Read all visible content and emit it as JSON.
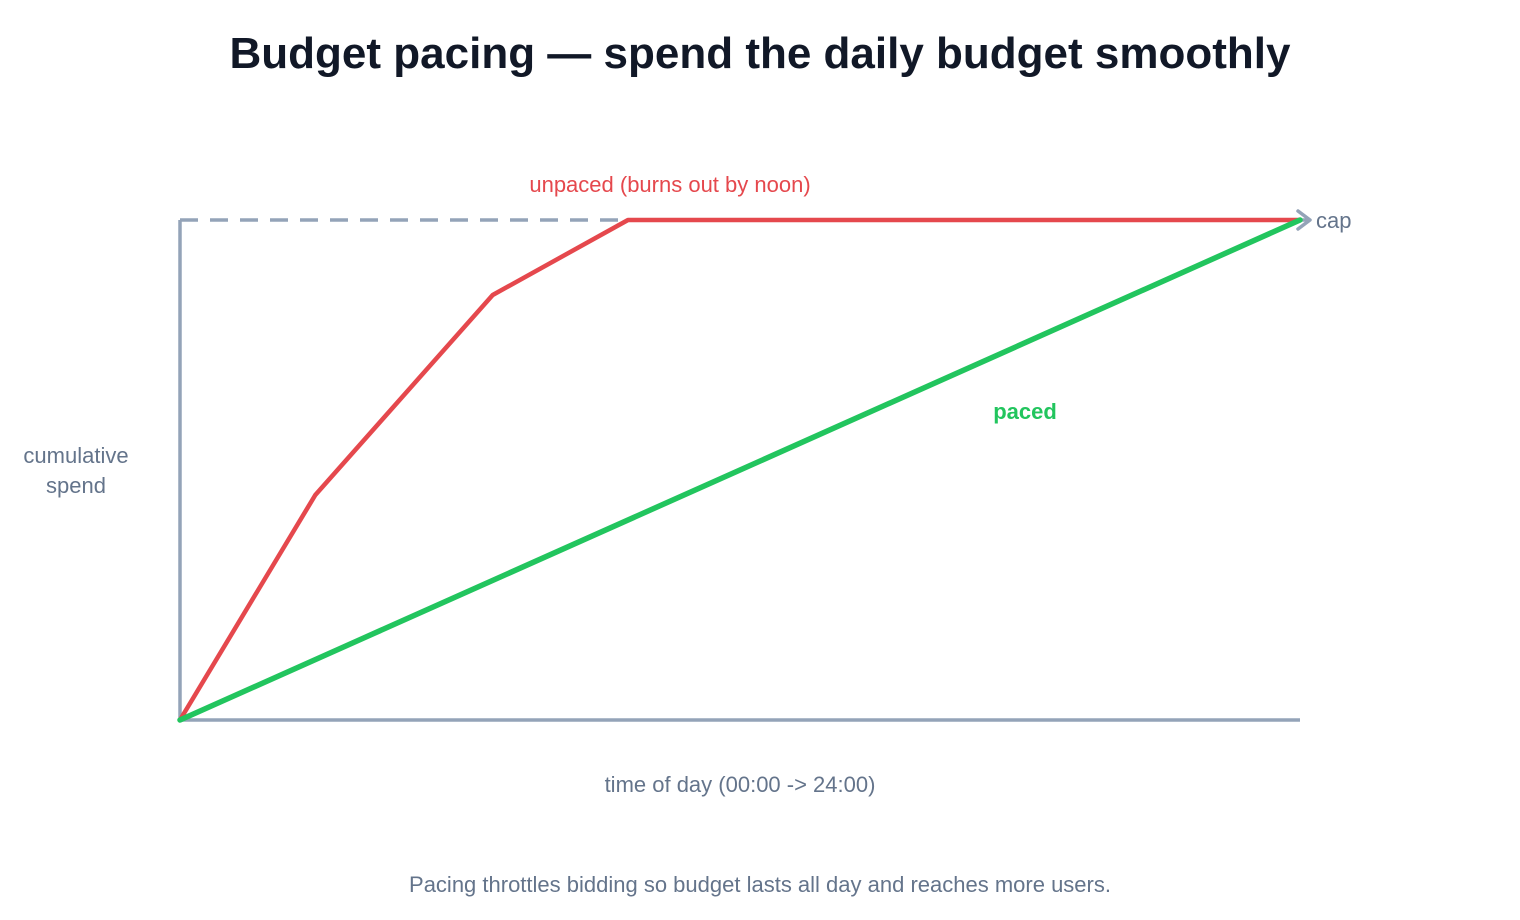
{
  "chart_data": {
    "type": "line",
    "title": "Budget pacing — spend the daily budget smoothly",
    "xlabel": "time of day  (00:00 -> 24:00)",
    "ylabel_lines": [
      "cumulative",
      "spend"
    ],
    "caption": "Pacing throttles bidding so budget lasts all day and reaches more users.",
    "cap_label": "cap",
    "xlim": [
      0,
      24
    ],
    "ylim": [
      0,
      1
    ],
    "cap_value": 1,
    "grid": false,
    "series": [
      {
        "name": "unpaced (burns out by noon)",
        "color": "#e5484d",
        "x": [
          0,
          2.9,
          6.7,
          9.6,
          24
        ],
        "y": [
          0,
          0.45,
          0.85,
          1,
          1
        ]
      },
      {
        "name": "paced",
        "color": "#22c55e",
        "x": [
          0,
          24
        ],
        "y": [
          0,
          1
        ]
      }
    ],
    "colors": {
      "title": "#111827",
      "axis": "#94a3b8",
      "text": "#64748b",
      "cap_line": "#94a3b8"
    }
  }
}
